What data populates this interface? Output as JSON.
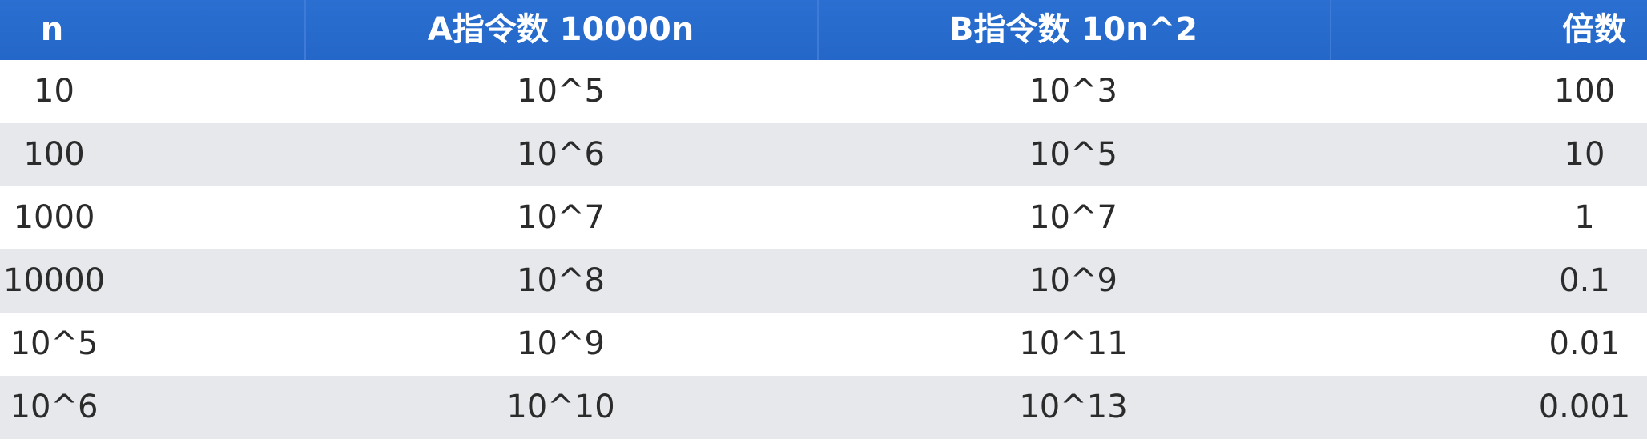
{
  "table": {
    "headers": [
      "n",
      "A指令数 10000n",
      "B指令数 10n^2",
      "倍数"
    ],
    "rows": [
      [
        "10",
        "10^5",
        "10^3",
        "100"
      ],
      [
        "100",
        "10^6",
        "10^5",
        "10"
      ],
      [
        "1000",
        "10^7",
        "10^7",
        "1"
      ],
      [
        "10000",
        "10^8",
        "10^9",
        "0.1"
      ],
      [
        "10^5",
        "10^9",
        "10^11",
        "0.01"
      ],
      [
        "10^6",
        "10^10",
        "10^13",
        "0.001"
      ]
    ]
  },
  "colors": {
    "header_bg": "#2467c8",
    "header_text": "#ffffff",
    "row_alt_bg": "#e6e8ec",
    "row_bg": "#ffffff",
    "cell_text": "#2b2b2b"
  }
}
